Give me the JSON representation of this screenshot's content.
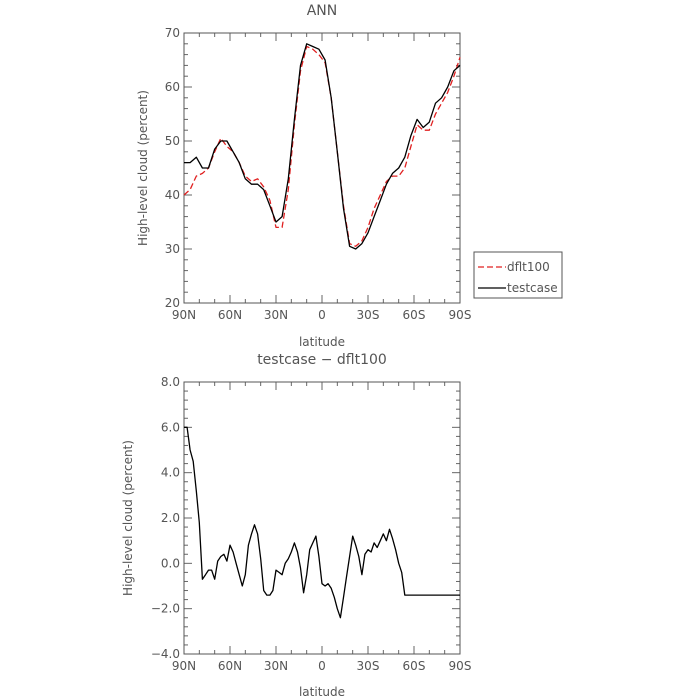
{
  "chart_data": [
    {
      "type": "line",
      "title": "ANN",
      "xlabel": "latitude",
      "ylabel": "High-level cloud (percent)",
      "xlim": [
        90,
        -90
      ],
      "ylim": [
        20,
        70
      ],
      "x_ticks": [
        {
          "value": 90,
          "label": "90N"
        },
        {
          "value": 60,
          "label": "60N"
        },
        {
          "value": 30,
          "label": "30N"
        },
        {
          "value": 0,
          "label": "0"
        },
        {
          "value": -30,
          "label": "30S"
        },
        {
          "value": -60,
          "label": "60S"
        },
        {
          "value": -90,
          "label": "90S"
        }
      ],
      "y_ticks": [
        {
          "value": 20,
          "label": "20"
        },
        {
          "value": 30,
          "label": "30"
        },
        {
          "value": 40,
          "label": "40"
        },
        {
          "value": 50,
          "label": "50"
        },
        {
          "value": 60,
          "label": "60"
        },
        {
          "value": 70,
          "label": "70"
        }
      ],
      "legend_position": "right",
      "series": [
        {
          "name": "dflt100",
          "color": "#e02020",
          "dash": "dashed",
          "x": [
            90,
            86,
            82,
            78,
            74,
            70,
            66,
            62,
            58,
            54,
            50,
            46,
            42,
            38,
            34,
            30,
            26,
            22,
            18,
            14,
            10,
            6,
            2,
            -2,
            -6,
            -10,
            -14,
            -18,
            -22,
            -26,
            -30,
            -34,
            -38,
            -42,
            -46,
            -50,
            -54,
            -58,
            -62,
            -66,
            -70,
            -74,
            -78,
            -82,
            -86,
            -90
          ],
          "y": [
            40,
            41,
            43.5,
            44,
            45,
            48,
            50.5,
            49,
            48,
            46,
            43.5,
            42.5,
            43,
            41.5,
            39,
            34,
            34,
            41,
            53,
            63,
            67.5,
            67,
            66,
            64.5,
            58,
            48,
            38,
            31,
            30.5,
            31.5,
            34,
            37.5,
            40,
            42.5,
            43.5,
            43.5,
            45,
            49,
            53,
            52,
            52,
            55,
            57,
            59,
            62,
            65.5
          ]
        },
        {
          "name": "testcase",
          "color": "#000000",
          "dash": "solid",
          "x": [
            90,
            86,
            82,
            78,
            74,
            70,
            66,
            62,
            58,
            54,
            50,
            46,
            42,
            38,
            34,
            30,
            26,
            22,
            18,
            14,
            10,
            6,
            2,
            -2,
            -6,
            -10,
            -14,
            -18,
            -22,
            -26,
            -30,
            -34,
            -38,
            -42,
            -46,
            -50,
            -54,
            -58,
            -62,
            -66,
            -70,
            -74,
            -78,
            -82,
            -86,
            -90
          ],
          "y": [
            46,
            46,
            47,
            45,
            45,
            48.5,
            50,
            50,
            48,
            46,
            43,
            42,
            42,
            41,
            38,
            35,
            36,
            43,
            54,
            64,
            68,
            67.5,
            67,
            65,
            58,
            48,
            37.5,
            30.5,
            30,
            31,
            33,
            36,
            39,
            42,
            44,
            45,
            47,
            51,
            54,
            52.5,
            53.5,
            57,
            58,
            60,
            63,
            64
          ]
        }
      ]
    },
    {
      "type": "line",
      "title": "testcase − dflt100",
      "xlabel": "latitude",
      "ylabel": "High-level cloud (percent)",
      "xlim": [
        90,
        -90
      ],
      "ylim": [
        -4,
        8
      ],
      "x_ticks": [
        {
          "value": 90,
          "label": "90N"
        },
        {
          "value": 60,
          "label": "60N"
        },
        {
          "value": 30,
          "label": "30N"
        },
        {
          "value": 0,
          "label": "0"
        },
        {
          "value": -30,
          "label": "30S"
        },
        {
          "value": -60,
          "label": "60S"
        },
        {
          "value": -90,
          "label": "90S"
        }
      ],
      "y_ticks": [
        {
          "value": -4,
          "label": "−4.0"
        },
        {
          "value": -2,
          "label": "−2.0"
        },
        {
          "value": 0,
          "label": "0.0"
        },
        {
          "value": 2,
          "label": "2.0"
        },
        {
          "value": 4,
          "label": "4.0"
        },
        {
          "value": 6,
          "label": "6.0"
        },
        {
          "value": 8,
          "label": "8.0"
        }
      ],
      "series": [
        {
          "color": "#000000",
          "dash": "solid",
          "x": [
            90,
            88,
            86,
            84,
            82,
            80,
            78,
            76,
            74,
            72,
            70,
            68,
            66,
            64,
            62,
            60,
            58,
            56,
            54,
            52,
            50,
            48,
            46,
            44,
            42,
            40,
            38,
            36,
            34,
            32,
            30,
            28,
            26,
            24,
            22,
            20,
            18,
            16,
            14,
            12,
            10,
            8,
            6,
            4,
            2,
            0,
            -2,
            -4,
            -6,
            -8,
            -10,
            -12,
            -14,
            -16,
            -18,
            -20,
            -22,
            -24,
            -26,
            -28,
            -30,
            -32,
            -34,
            -36,
            -38,
            -40,
            -42,
            -44,
            -46,
            -48,
            -50,
            -52,
            -54,
            -56,
            -58,
            -60,
            -62,
            -64,
            -66,
            -68,
            -70,
            -72,
            -74,
            -76,
            -78,
            -80,
            -82,
            -84,
            -86,
            -88,
            -90
          ],
          "y": [
            6.0,
            6.0,
            5.0,
            4.5,
            3.2,
            1.8,
            -0.7,
            -0.5,
            -0.3,
            -0.3,
            -0.7,
            0.1,
            0.3,
            0.4,
            0.1,
            0.8,
            0.5,
            0.0,
            -0.5,
            -1.0,
            -0.5,
            0.8,
            1.3,
            1.7,
            1.3,
            0.2,
            -1.2,
            -1.4,
            -1.4,
            -1.2,
            -0.3,
            -0.4,
            -0.5,
            0.0,
            0.2,
            0.5,
            0.9,
            0.5,
            -0.2,
            -1.3,
            -0.5,
            0.6,
            0.9,
            1.2,
            0.3,
            -0.9,
            -1.0,
            -0.9,
            -1.1,
            -1.5,
            -2.0,
            -2.4,
            -1.5,
            -0.6,
            0.3,
            1.2,
            0.8,
            0.3,
            -0.5,
            0.4,
            0.6,
            0.5,
            0.9,
            0.7,
            1.0,
            1.3,
            1.0,
            1.5,
            1.1,
            0.6,
            0.0,
            -0.4,
            -1.4,
            -1.4,
            -1.4,
            -1.4,
            -1.4,
            -1.4,
            -1.4,
            -1.4,
            -1.4,
            -1.4,
            -1.4,
            -1.4,
            -1.4,
            -1.4,
            -1.4,
            -1.4,
            -1.4,
            -1.4,
            -1.4
          ]
        }
      ]
    }
  ]
}
